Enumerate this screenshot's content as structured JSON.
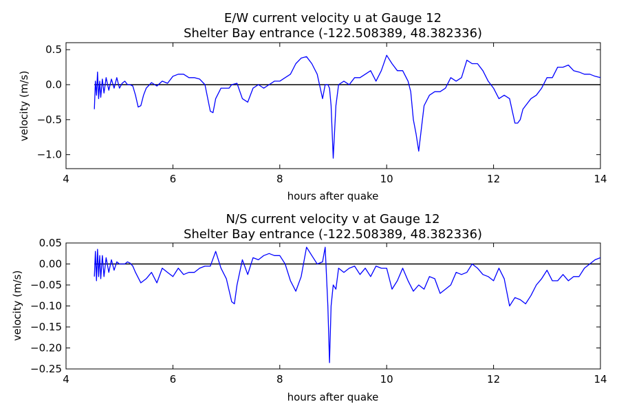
{
  "chart_data": [
    {
      "type": "line",
      "title": "E/W current velocity u at Gauge 12",
      "subtitle": "Shelter Bay entrance  (-122.508389, 48.382336)",
      "xlabel": "hours after quake",
      "ylabel": "velocity (m/s)",
      "xlim": [
        4,
        14
      ],
      "ylim": [
        -1.2,
        0.6
      ],
      "xticks": [
        "4",
        "6",
        "8",
        "10",
        "12",
        "14"
      ],
      "yticks": [
        "−1.0",
        "−0.5",
        "0.0",
        "0.5"
      ],
      "ytick_values": [
        -1.0,
        -0.5,
        0.0,
        0.5
      ],
      "line_color": "#0000ff",
      "zero_line_color": "#000000",
      "grid": false,
      "series": [
        {
          "x": [
            4.53,
            4.55,
            4.57,
            4.59,
            4.61,
            4.63,
            4.65,
            4.68,
            4.71,
            4.75,
            4.8,
            4.85,
            4.9,
            4.95,
            5.0,
            5.05,
            5.1,
            5.15,
            5.2,
            5.25,
            5.3,
            5.35,
            5.4,
            5.45,
            5.5,
            5.6,
            5.7,
            5.8,
            5.9,
            6.0,
            6.1,
            6.2,
            6.3,
            6.4,
            6.5,
            6.6,
            6.7,
            6.75,
            6.8,
            6.9,
            7.0,
            7.05,
            7.1,
            7.2,
            7.3,
            7.4,
            7.5,
            7.6,
            7.7,
            7.8,
            7.9,
            8.0,
            8.1,
            8.2,
            8.3,
            8.4,
            8.5,
            8.6,
            8.7,
            8.8,
            8.85,
            8.9,
            8.93,
            8.96,
            9.0,
            9.05,
            9.1,
            9.2,
            9.3,
            9.4,
            9.5,
            9.6,
            9.7,
            9.8,
            9.9,
            10.0,
            10.1,
            10.2,
            10.3,
            10.4,
            10.45,
            10.5,
            10.55,
            10.6,
            10.7,
            10.8,
            10.9,
            11.0,
            11.1,
            11.2,
            11.3,
            11.4,
            11.5,
            11.6,
            11.7,
            11.8,
            11.9,
            12.0,
            12.1,
            12.2,
            12.3,
            12.4,
            12.45,
            12.5,
            12.55,
            12.6,
            12.7,
            12.8,
            12.9,
            13.0,
            13.1,
            13.2,
            13.3,
            13.4,
            13.5,
            13.6,
            13.7,
            13.8,
            13.9,
            14.0
          ],
          "y": [
            -0.35,
            0.05,
            -0.15,
            0.18,
            -0.2,
            0.05,
            -0.18,
            0.08,
            -0.12,
            0.1,
            -0.08,
            0.08,
            -0.05,
            0.1,
            -0.05,
            0.02,
            0.05,
            0.0,
            0.0,
            -0.02,
            -0.15,
            -0.32,
            -0.3,
            -0.15,
            -0.05,
            0.03,
            -0.02,
            0.05,
            0.02,
            0.12,
            0.15,
            0.15,
            0.1,
            0.1,
            0.08,
            0.0,
            -0.38,
            -0.4,
            -0.2,
            -0.05,
            -0.05,
            -0.05,
            0.0,
            0.02,
            -0.2,
            -0.25,
            -0.05,
            0.0,
            -0.05,
            0.0,
            0.05,
            0.05,
            0.1,
            0.15,
            0.3,
            0.38,
            0.4,
            0.3,
            0.15,
            -0.2,
            0.0,
            0.0,
            -0.05,
            -0.3,
            -1.05,
            -0.3,
            0.0,
            0.05,
            0.0,
            0.1,
            0.1,
            0.15,
            0.2,
            0.05,
            0.2,
            0.42,
            0.3,
            0.2,
            0.2,
            0.05,
            -0.1,
            -0.5,
            -0.7,
            -0.95,
            -0.3,
            -0.15,
            -0.1,
            -0.1,
            -0.05,
            0.1,
            0.05,
            0.1,
            0.35,
            0.3,
            0.3,
            0.2,
            0.05,
            -0.05,
            -0.2,
            -0.15,
            -0.2,
            -0.55,
            -0.55,
            -0.5,
            -0.35,
            -0.3,
            -0.2,
            -0.15,
            -0.05,
            0.1,
            0.1,
            0.25,
            0.25,
            0.28,
            0.2,
            0.18,
            0.15,
            0.15,
            0.12,
            0.1
          ]
        }
      ]
    },
    {
      "type": "line",
      "title": "N/S current velocity v at Gauge 12",
      "subtitle": "Shelter Bay entrance  (-122.508389, 48.382336)",
      "xlabel": "hours after quake",
      "ylabel": "velocity (m/s)",
      "xlim": [
        4,
        14
      ],
      "ylim": [
        -0.25,
        0.05
      ],
      "xticks": [
        "4",
        "6",
        "8",
        "10",
        "12",
        "14"
      ],
      "yticks": [
        "−0.25",
        "−0.20",
        "−0.15",
        "−0.10",
        "−0.05",
        "0.00",
        "0.05"
      ],
      "ytick_values": [
        -0.25,
        -0.2,
        -0.15,
        -0.1,
        -0.05,
        0.0,
        0.05
      ],
      "line_color": "#0000ff",
      "zero_line_color": "#000000",
      "grid": false,
      "series": [
        {
          "x": [
            4.53,
            4.55,
            4.57,
            4.59,
            4.61,
            4.63,
            4.65,
            4.68,
            4.71,
            4.75,
            4.8,
            4.85,
            4.9,
            4.95,
            5.0,
            5.05,
            5.1,
            5.15,
            5.2,
            5.25,
            5.3,
            5.4,
            5.5,
            5.6,
            5.7,
            5.8,
            5.9,
            6.0,
            6.1,
            6.2,
            6.3,
            6.4,
            6.5,
            6.6,
            6.7,
            6.8,
            6.9,
            7.0,
            7.1,
            7.15,
            7.2,
            7.3,
            7.4,
            7.5,
            7.6,
            7.7,
            7.8,
            7.9,
            8.0,
            8.1,
            8.2,
            8.3,
            8.4,
            8.5,
            8.6,
            8.7,
            8.8,
            8.85,
            8.9,
            8.93,
            8.96,
            9.0,
            9.05,
            9.1,
            9.2,
            9.3,
            9.4,
            9.5,
            9.6,
            9.7,
            9.8,
            9.9,
            10.0,
            10.1,
            10.2,
            10.3,
            10.4,
            10.5,
            10.6,
            10.7,
            10.8,
            10.9,
            11.0,
            11.1,
            11.2,
            11.3,
            11.4,
            11.5,
            11.6,
            11.7,
            11.8,
            11.9,
            12.0,
            12.1,
            12.2,
            12.3,
            12.4,
            12.5,
            12.6,
            12.7,
            12.8,
            12.9,
            13.0,
            13.1,
            13.2,
            13.3,
            13.4,
            13.5,
            13.6,
            13.7,
            13.8,
            13.9,
            14.0
          ],
          "y": [
            -0.03,
            0.03,
            -0.04,
            0.035,
            -0.03,
            0.02,
            -0.035,
            0.02,
            -0.03,
            0.015,
            -0.02,
            0.01,
            -0.015,
            0.005,
            0.0,
            0.0,
            0.0,
            0.005,
            0.002,
            -0.005,
            -0.02,
            -0.045,
            -0.035,
            -0.02,
            -0.045,
            -0.01,
            -0.02,
            -0.03,
            -0.01,
            -0.025,
            -0.02,
            -0.02,
            -0.01,
            -0.005,
            -0.005,
            0.03,
            -0.01,
            -0.035,
            -0.09,
            -0.095,
            -0.05,
            0.01,
            -0.025,
            0.015,
            0.01,
            0.02,
            0.025,
            0.02,
            0.02,
            0.0,
            -0.04,
            -0.065,
            -0.03,
            0.04,
            0.02,
            0.0,
            0.005,
            0.04,
            -0.1,
            -0.235,
            -0.1,
            -0.05,
            -0.06,
            -0.01,
            -0.02,
            -0.01,
            -0.005,
            -0.025,
            -0.01,
            -0.03,
            -0.005,
            -0.01,
            -0.01,
            -0.06,
            -0.04,
            -0.01,
            -0.04,
            -0.065,
            -0.05,
            -0.06,
            -0.03,
            -0.035,
            -0.07,
            -0.06,
            -0.05,
            -0.02,
            -0.025,
            -0.02,
            0.0,
            -0.01,
            -0.025,
            -0.03,
            -0.04,
            -0.01,
            -0.035,
            -0.1,
            -0.08,
            -0.085,
            -0.095,
            -0.075,
            -0.05,
            -0.035,
            -0.015,
            -0.04,
            -0.04,
            -0.025,
            -0.04,
            -0.03,
            -0.03,
            -0.01,
            0.0,
            0.01,
            0.015
          ]
        }
      ]
    }
  ]
}
